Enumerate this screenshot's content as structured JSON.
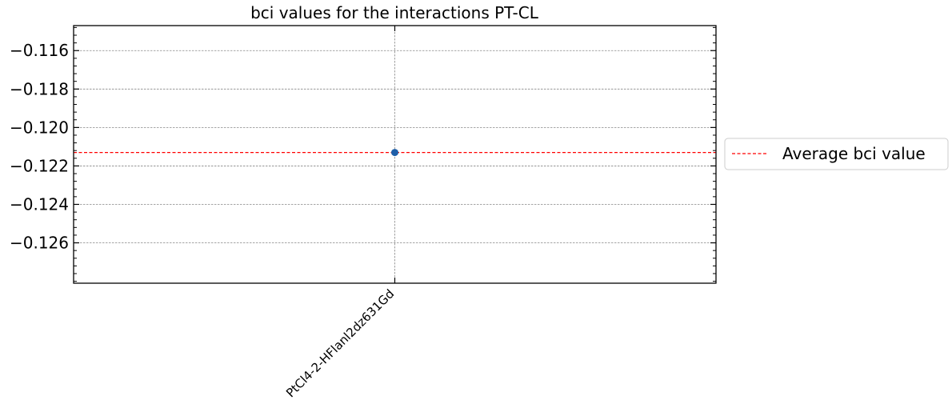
{
  "chart_data": {
    "type": "scatter",
    "title": "bci values for the interactions PT-CL",
    "xlabel": "",
    "ylabel": "",
    "categories": [
      "PtCl4-2-HFlanl2dz631Gd"
    ],
    "series": [
      {
        "values": [
          -0.1213
        ],
        "color": "#1f5fa8"
      }
    ],
    "average": {
      "name": "Average bci value",
      "value": -0.1213,
      "color": "#ff0000"
    },
    "ylim": [
      -0.1281,
      -0.1147
    ],
    "yticks": [
      -0.116,
      -0.118,
      -0.12,
      -0.122,
      -0.124,
      -0.126
    ],
    "ytick_labels": [
      "−0.116",
      "−0.118",
      "−0.120",
      "−0.122",
      "−0.124",
      "−0.126"
    ],
    "grid": true,
    "legend_position": "outside-right"
  }
}
